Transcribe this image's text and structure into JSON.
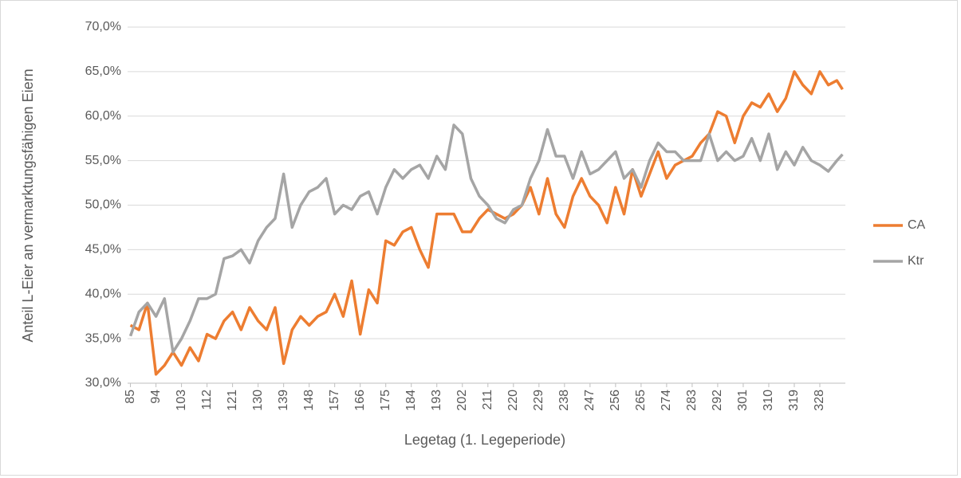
{
  "chart_data": {
    "type": "line",
    "x_label": "Legetag (1. Legeperiode)",
    "y_label": "Anteil L-Eier an vermarktungsfähigen Eiern",
    "x": [
      85,
      88,
      91,
      94,
      97,
      100,
      103,
      106,
      109,
      112,
      115,
      118,
      121,
      124,
      127,
      130,
      133,
      136,
      139,
      142,
      145,
      148,
      151,
      154,
      157,
      160,
      163,
      166,
      169,
      172,
      175,
      178,
      181,
      184,
      187,
      190,
      193,
      196,
      199,
      202,
      205,
      208,
      211,
      214,
      217,
      220,
      223,
      226,
      229,
      232,
      235,
      238,
      241,
      244,
      247,
      250,
      253,
      256,
      259,
      262,
      265,
      268,
      271,
      274,
      277,
      280,
      283,
      286,
      289,
      292,
      295,
      298,
      301,
      304,
      307,
      310,
      313,
      316,
      319,
      322,
      325,
      328,
      331,
      334,
      336
    ],
    "series": [
      {
        "name": "CA",
        "color": "#ed7d31",
        "values": [
          36.5,
          36,
          39,
          31,
          32,
          33.5,
          32,
          34,
          32.5,
          35.5,
          35,
          37,
          38,
          36,
          38.5,
          37,
          36,
          38.5,
          32.2,
          36,
          37.5,
          36.5,
          37.5,
          38,
          40,
          37.5,
          41.5,
          35.5,
          40.5,
          39,
          46,
          45.5,
          47,
          47.5,
          45,
          43,
          49,
          49,
          49,
          47,
          47,
          48.5,
          49.5,
          49,
          48.5,
          49,
          50,
          52,
          49,
          53,
          49,
          47.5,
          51,
          53,
          51,
          50,
          48,
          52,
          49,
          54,
          51,
          53.5,
          56,
          53,
          54.5,
          55,
          55.5,
          57,
          58,
          60.5,
          60,
          57,
          60,
          61.5,
          61,
          62.5,
          60.5,
          62,
          65,
          63.5,
          62.5,
          65,
          63.5,
          64,
          63
        ]
      },
      {
        "name": "Ktr",
        "color": "#a5a5a5",
        "values": [
          35.3,
          38,
          39,
          37.5,
          39.5,
          33.5,
          35,
          37,
          39.5,
          39.5,
          40,
          44,
          44.3,
          45,
          43.5,
          46,
          47.5,
          48.5,
          53.5,
          47.5,
          50,
          51.5,
          52,
          53,
          49,
          50,
          49.5,
          51,
          51.5,
          49,
          52,
          54,
          53,
          54,
          54.5,
          53,
          55.5,
          54,
          59,
          58,
          53,
          51,
          50,
          48.5,
          48,
          49.5,
          50,
          53,
          55,
          58.5,
          55.5,
          55.5,
          53,
          56,
          53.5,
          54,
          55,
          56,
          53,
          54,
          52,
          55,
          57,
          56,
          56,
          55,
          55,
          55,
          58,
          55,
          56,
          55,
          55.5,
          57.5,
          55,
          58,
          54,
          56,
          54.5,
          56.5,
          55,
          54.5,
          53.8,
          55,
          55.7
        ]
      }
    ],
    "xlim": [
      84,
      337
    ],
    "xticks": [
      85,
      94,
      103,
      112,
      121,
      130,
      139,
      148,
      157,
      166,
      175,
      184,
      193,
      202,
      211,
      220,
      229,
      238,
      247,
      256,
      265,
      274,
      283,
      292,
      301,
      310,
      319,
      328
    ],
    "ylim": [
      30,
      70
    ],
    "yticks": [
      {
        "value": 30,
        "label": "30,0%"
      },
      {
        "value": 35,
        "label": "35,0%"
      },
      {
        "value": 40,
        "label": "40,0%"
      },
      {
        "value": 45,
        "label": "45,0%"
      },
      {
        "value": 50,
        "label": "50,0%"
      },
      {
        "value": 55,
        "label": "55,0%"
      },
      {
        "value": 60,
        "label": "60,0%"
      },
      {
        "value": 65,
        "label": "65,0%"
      },
      {
        "value": 70,
        "label": "70,0%"
      }
    ],
    "grid": true,
    "legend": "right"
  }
}
